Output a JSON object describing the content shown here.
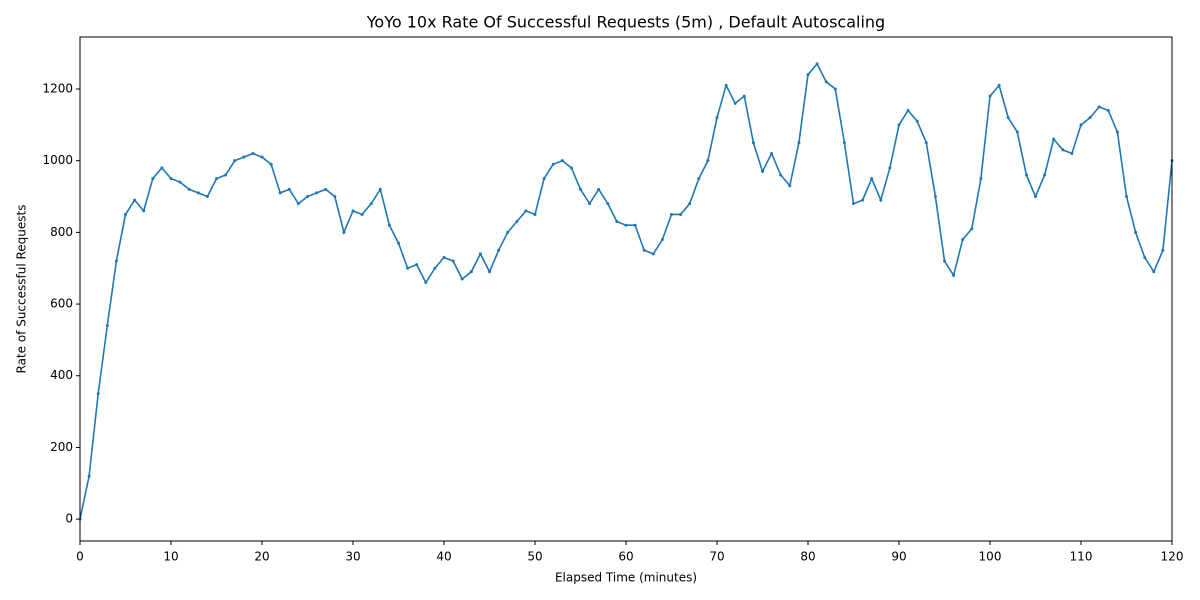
{
  "chart_data": {
    "type": "line",
    "title": "YoYo 10x Rate Of Successful Requests (5m) , Default Autoscaling",
    "x_label": "Elapsed Time (minutes)",
    "y_label": "Rate of Successful Requests",
    "x": [
      0,
      1,
      2,
      3,
      4,
      5,
      6,
      7,
      8,
      9,
      10,
      11,
      12,
      13,
      14,
      15,
      16,
      17,
      18,
      19,
      20,
      21,
      22,
      23,
      24,
      25,
      26,
      27,
      28,
      29,
      30,
      31,
      32,
      33,
      34,
      35,
      36,
      37,
      38,
      39,
      40,
      41,
      42,
      43,
      44,
      45,
      46,
      47,
      48,
      49,
      50,
      51,
      52,
      53,
      54,
      55,
      56,
      57,
      58,
      59,
      60,
      61,
      62,
      63,
      64,
      65,
      66,
      67,
      68,
      69,
      70,
      71,
      72,
      73,
      74,
      75,
      76,
      77,
      78,
      79,
      80,
      81,
      82,
      83,
      84,
      85,
      86,
      87,
      88,
      89,
      90,
      91,
      92,
      93,
      94,
      95,
      96,
      97,
      98,
      99,
      100,
      101,
      102,
      103,
      104,
      105,
      106,
      107,
      108,
      109,
      110,
      111,
      112,
      113,
      114,
      115,
      116,
      117,
      118,
      119,
      120
    ],
    "series": [
      {
        "name": "Rate of Successful Requests",
        "color": "#1f77b4",
        "values": [
          0,
          120,
          350,
          540,
          720,
          850,
          890,
          860,
          950,
          980,
          950,
          940,
          920,
          910,
          900,
          950,
          960,
          1000,
          1010,
          1020,
          1010,
          990,
          910,
          920,
          880,
          900,
          910,
          920,
          900,
          800,
          860,
          850,
          880,
          920,
          820,
          770,
          700,
          710,
          660,
          700,
          730,
          720,
          670,
          690,
          740,
          690,
          750,
          800,
          830,
          860,
          850,
          950,
          990,
          1000,
          980,
          920,
          880,
          920,
          880,
          830,
          820,
          820,
          750,
          740,
          780,
          850,
          850,
          880,
          950,
          1000,
          1120,
          1210,
          1160,
          1180,
          1050,
          970,
          1020,
          960,
          930,
          1050,
          1240,
          1270,
          1220,
          1200,
          1050,
          880,
          890,
          950,
          890,
          980,
          1100,
          1140,
          1110,
          1050,
          900,
          720,
          680,
          780,
          810,
          950,
          1180,
          1210,
          1120,
          1080,
          960,
          900,
          960,
          1060,
          1030,
          1020,
          1100,
          1120,
          1150,
          1140,
          1080,
          900,
          800,
          730,
          690,
          750,
          1000
        ]
      }
    ],
    "xlim": [
      0,
      120
    ],
    "xticks": [
      0,
      10,
      20,
      30,
      40,
      50,
      60,
      70,
      80,
      90,
      100,
      110,
      120
    ],
    "ylim": [
      -61,
      1345
    ],
    "yticks": [
      0,
      200,
      400,
      600,
      800,
      1000,
      1200
    ],
    "grid": false,
    "markers": true
  }
}
